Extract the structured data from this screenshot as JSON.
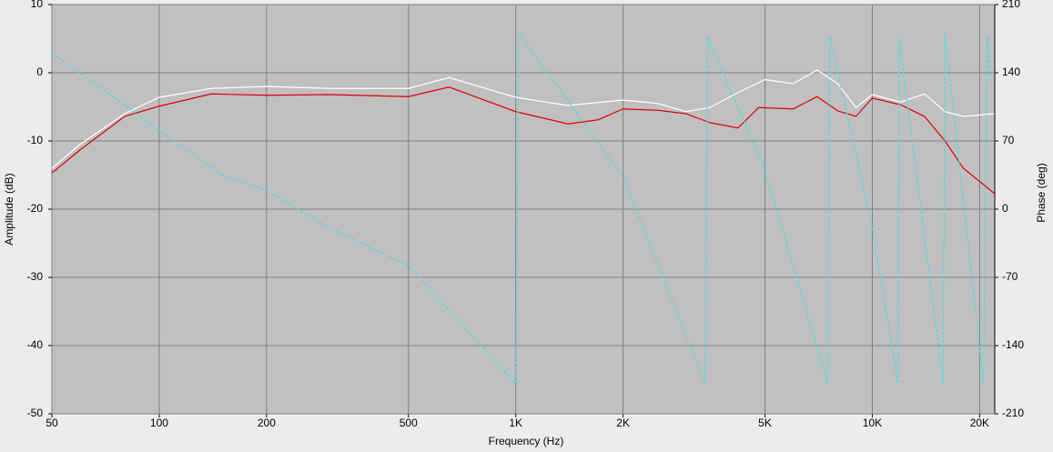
{
  "chart_data": {
    "type": "line",
    "log_x": true,
    "grid": true,
    "x_label": "Frequency (Hz)",
    "y_label": "Amplitude (dB)",
    "y2_label": "Phase (deg)",
    "plot_background": "#c0c0c0",
    "grid_color": "#808080",
    "xlim": [
      50,
      22050
    ],
    "xticks": [
      50,
      100,
      200,
      500,
      {
        "value": 1000,
        "label": "1K"
      },
      {
        "value": 2000,
        "label": "2K"
      },
      {
        "value": 5000,
        "label": "5K"
      },
      {
        "value": 10000,
        "label": "10K"
      },
      {
        "value": 20000,
        "label": "20K"
      }
    ],
    "ylim": [
      -50,
      10
    ],
    "yticks": [
      10,
      0,
      -10,
      -20,
      -30,
      -40,
      -50
    ],
    "y2lim": [
      -210,
      210
    ],
    "y2ticks": [
      210,
      140,
      70,
      0,
      -70,
      -140,
      -210
    ],
    "series": [
      {
        "color": "#ffffff",
        "dash": false,
        "x": [
          50,
          60,
          80,
          100,
          140,
          200,
          300,
          500,
          650,
          1000,
          1400,
          2000,
          2500,
          3000,
          3500,
          4200,
          5000,
          6000,
          7000,
          8000,
          9000,
          10000,
          12000,
          14000,
          16000,
          18000,
          22000
        ],
        "values": [
          -14,
          -10.5,
          -6,
          -3.6,
          -2.3,
          -2,
          -2.3,
          -2.3,
          -0.7,
          -3.6,
          -4.8,
          -4,
          -4.5,
          -5.7,
          -5.1,
          -2.9,
          -1,
          -1.6,
          0.4,
          -1.6,
          -5.1,
          -3.2,
          -4.3,
          -3.1,
          -5.7,
          -6.4,
          -6
        ]
      },
      {
        "color": "#e00000",
        "dash": false,
        "x": [
          50,
          60,
          80,
          100,
          140,
          200,
          300,
          500,
          650,
          1000,
          1400,
          1700,
          2000,
          2500,
          3000,
          3500,
          4200,
          4800,
          6000,
          7000,
          8000,
          9000,
          10000,
          12000,
          14000,
          16000,
          18000,
          22000
        ],
        "values": [
          -14.7,
          -11.3,
          -6.4,
          -4.9,
          -3.1,
          -3.3,
          -3.2,
          -3.5,
          -2.1,
          -5.7,
          -7.5,
          -6.9,
          -5.3,
          -5.5,
          -6,
          -7.3,
          -8.1,
          -5.1,
          -5.3,
          -3.5,
          -5.6,
          -6.4,
          -3.7,
          -4.7,
          -6.4,
          -10,
          -14,
          -17.7
        ]
      },
      {
        "color": "#40e0e0",
        "dash": true,
        "axis": "y2",
        "x": [
          50,
          80,
          100,
          150,
          200,
          300,
          500,
          1000,
          1020,
          2000,
          3400,
          3450,
          5000,
          7500,
          7600,
          10000,
          11800,
          11900,
          15800,
          16000,
          20500,
          21000,
          21500
        ],
        "values": [
          160.5,
          107,
          81,
          35,
          19,
          -19,
          -58,
          -179,
          180,
          33,
          -179,
          177,
          40,
          -179,
          177,
          -19,
          -179,
          175,
          -179,
          180,
          -179,
          177,
          130
        ]
      }
    ]
  }
}
